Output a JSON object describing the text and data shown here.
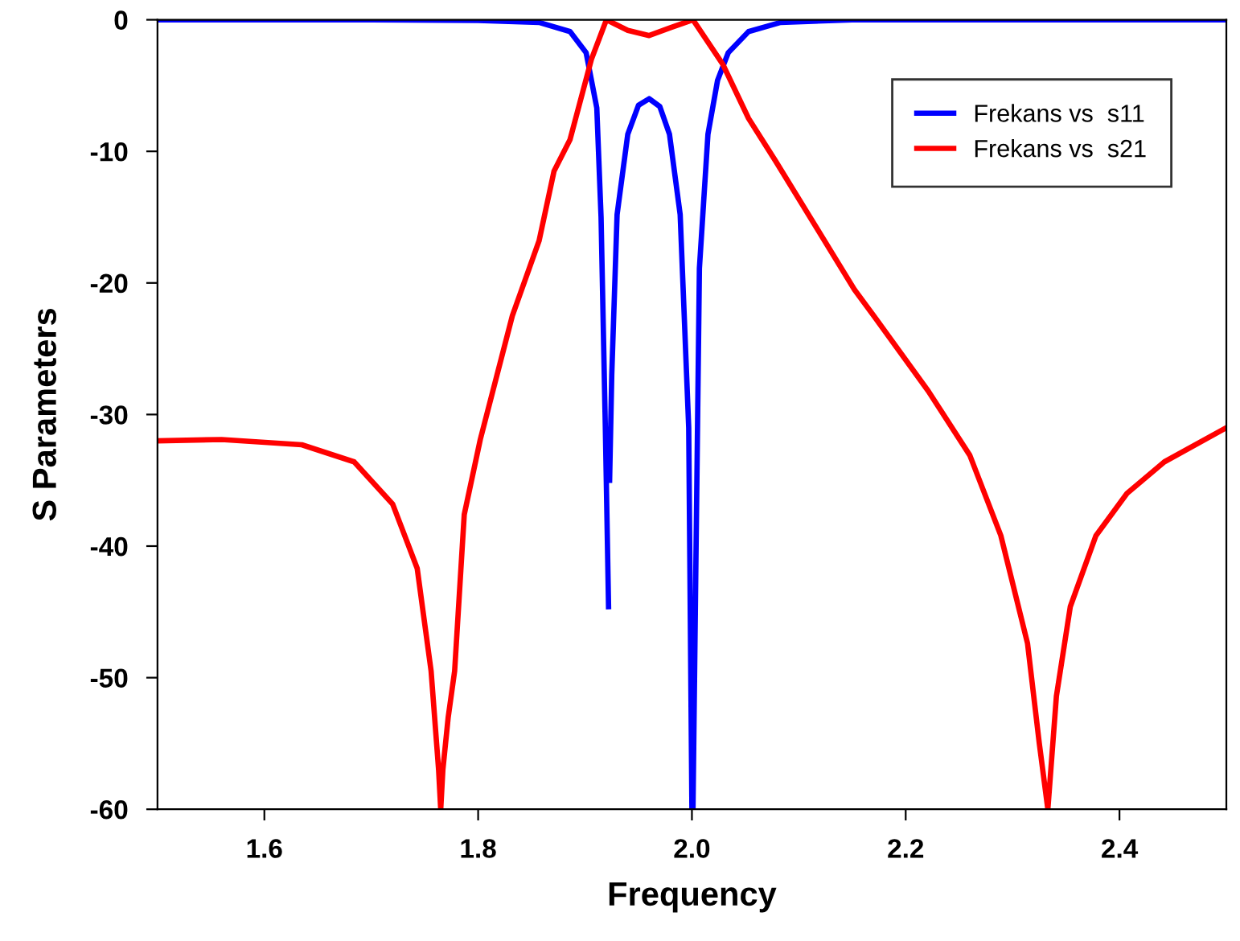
{
  "chart_data": {
    "type": "line",
    "xlabel": "Frequency",
    "ylabel": "S Parameters",
    "xlim": [
      1.5,
      2.5
    ],
    "ylim": [
      -60,
      0
    ],
    "xticks": [
      {
        "value": 1.6,
        "label": "1.6"
      },
      {
        "value": 1.8,
        "label": "1.8"
      },
      {
        "value": 2.0,
        "label": "2.0"
      },
      {
        "value": 2.2,
        "label": "2.2"
      },
      {
        "value": 2.4,
        "label": "2.4"
      }
    ],
    "yticks": [
      0,
      -10,
      -20,
      -30,
      -40,
      -50,
      -60
    ],
    "grid": false,
    "legend": "top right",
    "marker": "none",
    "line_style": "solid",
    "series": [
      {
        "name": "Frekans vs  s11",
        "color": "#0000ff",
        "x": [
          1.5,
          1.7,
          1.8,
          1.857,
          1.886,
          1.901,
          1.911,
          1.915,
          1.919,
          1.921,
          1.922,
          null,
          1.923,
          1.925,
          1.93,
          1.94,
          1.95,
          1.96,
          1.97,
          1.979,
          1.989,
          1.997,
          2.0,
          2.001,
          2.007,
          2.015,
          2.024,
          2.034,
          2.053,
          2.083,
          2.15,
          2.3,
          2.5
        ],
        "values": [
          0,
          0,
          -0.05,
          -0.2,
          -0.9,
          -2.5,
          -6.7,
          -15,
          -31,
          -40,
          -44.6,
          null,
          -35,
          -27,
          -14.8,
          -8.7,
          -6.5,
          -6.0,
          -6.6,
          -8.7,
          -14.8,
          -31,
          -60,
          -60,
          -18.9,
          -8.7,
          -4.6,
          -2.5,
          -0.9,
          -0.2,
          0,
          0,
          0
        ]
      },
      {
        "name": "Frekans vs  s21",
        "color": "#ff0000",
        "x": [
          1.5,
          1.56,
          1.635,
          1.684,
          1.72,
          1.743,
          1.756,
          1.763,
          1.765,
          1.767,
          1.772,
          1.778,
          1.787,
          1.802,
          1.832,
          1.857,
          1.871,
          1.886,
          1.906,
          1.92,
          1.94,
          1.96,
          1.98,
          2.001,
          2.029,
          2.053,
          2.078,
          2.112,
          2.152,
          2.171,
          2.221,
          2.26,
          2.289,
          2.314,
          2.325,
          2.333,
          2.341,
          2.354,
          2.378,
          2.407,
          2.442,
          2.5
        ],
        "values": [
          -32,
          -31.9,
          -32.3,
          -33.6,
          -36.8,
          -41.7,
          -49.5,
          -57,
          -60,
          -57,
          -53,
          -49.5,
          -37.6,
          -31.9,
          -22.5,
          -16.8,
          -11.5,
          -9.1,
          -3.0,
          0,
          -0.8,
          -1.2,
          -0.6,
          0,
          -3.4,
          -7.5,
          -10.7,
          -15.2,
          -20.5,
          -22.6,
          -28.2,
          -33.1,
          -39.2,
          -47.4,
          -55,
          -60,
          -51.4,
          -44.6,
          -39.2,
          -36.0,
          -33.6,
          -31.0
        ]
      }
    ]
  }
}
